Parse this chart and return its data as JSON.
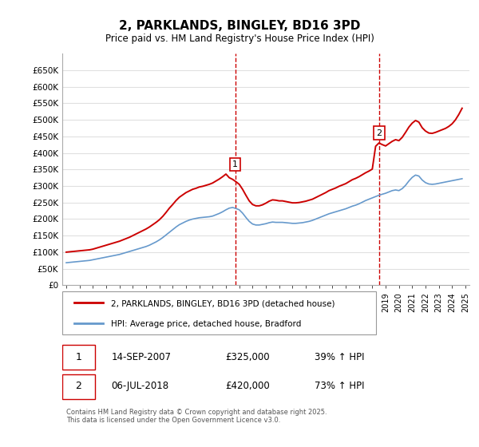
{
  "title": "2, PARKLANDS, BINGLEY, BD16 3PD",
  "subtitle": "Price paid vs. HM Land Registry's House Price Index (HPI)",
  "ylabel": "",
  "bg_color": "#ffffff",
  "grid_color": "#e0e0e0",
  "red_color": "#cc0000",
  "blue_color": "#6699cc",
  "marker1_date_idx": 12.75,
  "marker2_date_idx": 23.5,
  "marker1_label": "1",
  "marker2_label": "2",
  "legend_label_red": "2, PARKLANDS, BINGLEY, BD16 3PD (detached house)",
  "legend_label_blue": "HPI: Average price, detached house, Bradford",
  "table_rows": [
    [
      "1",
      "14-SEP-2007",
      "£325,000",
      "39% ↑ HPI"
    ],
    [
      "2",
      "06-JUL-2018",
      "£420,000",
      "73% ↑ HPI"
    ]
  ],
  "footnote": "Contains HM Land Registry data © Crown copyright and database right 2025.\nThis data is licensed under the Open Government Licence v3.0.",
  "ylim": [
    0,
    700000
  ],
  "yticks": [
    0,
    50000,
    100000,
    150000,
    200000,
    250000,
    300000,
    350000,
    400000,
    450000,
    500000,
    550000,
    600000,
    650000
  ],
  "ytick_labels": [
    "£0",
    "£50K",
    "£100K",
    "£150K",
    "£200K",
    "£250K",
    "£300K",
    "£350K",
    "£400K",
    "£450K",
    "£500K",
    "£550K",
    "£600K",
    "£650K"
  ],
  "xtick_years": [
    1995,
    1996,
    1997,
    1998,
    1999,
    2000,
    2001,
    2002,
    2003,
    2004,
    2005,
    2006,
    2007,
    2008,
    2009,
    2010,
    2011,
    2012,
    2013,
    2014,
    2015,
    2016,
    2017,
    2018,
    2019,
    2020,
    2021,
    2022,
    2023,
    2024,
    2025
  ],
  "hpi_x": [
    1995.0,
    1995.25,
    1995.5,
    1995.75,
    1996.0,
    1996.25,
    1996.5,
    1996.75,
    1997.0,
    1997.25,
    1997.5,
    1997.75,
    1998.0,
    1998.25,
    1998.5,
    1998.75,
    1999.0,
    1999.25,
    1999.5,
    1999.75,
    2000.0,
    2000.25,
    2000.5,
    2000.75,
    2001.0,
    2001.25,
    2001.5,
    2001.75,
    2002.0,
    2002.25,
    2002.5,
    2002.75,
    2003.0,
    2003.25,
    2003.5,
    2003.75,
    2004.0,
    2004.25,
    2004.5,
    2004.75,
    2005.0,
    2005.25,
    2005.5,
    2005.75,
    2006.0,
    2006.25,
    2006.5,
    2006.75,
    2007.0,
    2007.25,
    2007.5,
    2007.75,
    2008.0,
    2008.25,
    2008.5,
    2008.75,
    2009.0,
    2009.25,
    2009.5,
    2009.75,
    2010.0,
    2010.25,
    2010.5,
    2010.75,
    2011.0,
    2011.25,
    2011.5,
    2011.75,
    2012.0,
    2012.25,
    2012.5,
    2012.75,
    2013.0,
    2013.25,
    2013.5,
    2013.75,
    2014.0,
    2014.25,
    2014.5,
    2014.75,
    2015.0,
    2015.25,
    2015.5,
    2015.75,
    2016.0,
    2016.25,
    2016.5,
    2016.75,
    2017.0,
    2017.25,
    2017.5,
    2017.75,
    2018.0,
    2018.25,
    2018.5,
    2018.75,
    2019.0,
    2019.25,
    2019.5,
    2019.75,
    2020.0,
    2020.25,
    2020.5,
    2020.75,
    2021.0,
    2021.25,
    2021.5,
    2021.75,
    2022.0,
    2022.25,
    2022.5,
    2022.75,
    2023.0,
    2023.25,
    2023.5,
    2023.75,
    2024.0,
    2024.25,
    2024.5,
    2024.75
  ],
  "hpi_y": [
    68000,
    69000,
    70000,
    71000,
    72000,
    73000,
    74000,
    75000,
    77000,
    79000,
    81000,
    83000,
    85000,
    87000,
    89000,
    91000,
    93000,
    96000,
    99000,
    102000,
    105000,
    108000,
    111000,
    114000,
    117000,
    121000,
    126000,
    131000,
    137000,
    144000,
    152000,
    160000,
    168000,
    176000,
    183000,
    188000,
    193000,
    197000,
    200000,
    202000,
    204000,
    205000,
    206000,
    207000,
    209000,
    213000,
    217000,
    222000,
    228000,
    233000,
    235000,
    232000,
    228000,
    218000,
    205000,
    193000,
    185000,
    182000,
    182000,
    184000,
    186000,
    189000,
    191000,
    190000,
    190000,
    190000,
    189000,
    188000,
    187000,
    187000,
    188000,
    189000,
    191000,
    193000,
    196000,
    200000,
    204000,
    208000,
    212000,
    216000,
    219000,
    222000,
    225000,
    228000,
    231000,
    235000,
    239000,
    242000,
    246000,
    251000,
    256000,
    260000,
    264000,
    268000,
    272000,
    275000,
    278000,
    282000,
    286000,
    288000,
    286000,
    292000,
    302000,
    315000,
    326000,
    333000,
    330000,
    318000,
    310000,
    306000,
    305000,
    306000,
    308000,
    310000,
    312000,
    314000,
    316000,
    318000,
    320000,
    322000
  ],
  "red_x": [
    1995.0,
    1995.25,
    1995.5,
    1995.75,
    1996.0,
    1996.25,
    1996.5,
    1996.75,
    1997.0,
    1997.25,
    1997.5,
    1997.75,
    1998.0,
    1998.25,
    1998.5,
    1998.75,
    1999.0,
    1999.25,
    1999.5,
    1999.75,
    2000.0,
    2000.25,
    2000.5,
    2000.75,
    2001.0,
    2001.25,
    2001.5,
    2001.75,
    2002.0,
    2002.25,
    2002.5,
    2002.75,
    2003.0,
    2003.25,
    2003.5,
    2003.75,
    2004.0,
    2004.25,
    2004.5,
    2004.75,
    2005.0,
    2005.25,
    2005.5,
    2005.75,
    2006.0,
    2006.25,
    2006.5,
    2006.75,
    2007.0,
    2007.25,
    2007.5,
    2007.75,
    2008.0,
    2008.25,
    2008.5,
    2008.75,
    2009.0,
    2009.25,
    2009.5,
    2009.75,
    2010.0,
    2010.25,
    2010.5,
    2010.75,
    2011.0,
    2011.25,
    2011.5,
    2011.75,
    2012.0,
    2012.25,
    2012.5,
    2012.75,
    2013.0,
    2013.25,
    2013.5,
    2013.75,
    2014.0,
    2014.25,
    2014.5,
    2014.75,
    2015.0,
    2015.25,
    2015.5,
    2015.75,
    2016.0,
    2016.25,
    2016.5,
    2016.75,
    2017.0,
    2017.25,
    2017.5,
    2017.75,
    2018.0,
    2018.25,
    2018.5,
    2018.75,
    2019.0,
    2019.25,
    2019.5,
    2019.75,
    2020.0,
    2020.25,
    2020.5,
    2020.75,
    2021.0,
    2021.25,
    2021.5,
    2021.75,
    2022.0,
    2022.25,
    2022.5,
    2022.75,
    2023.0,
    2023.25,
    2023.5,
    2023.75,
    2024.0,
    2024.25,
    2024.5,
    2024.75
  ],
  "red_y": [
    100000,
    101000,
    102000,
    103000,
    104000,
    105000,
    106000,
    107000,
    109000,
    112000,
    115000,
    118000,
    121000,
    124000,
    127000,
    130000,
    133000,
    137000,
    141000,
    145000,
    150000,
    155000,
    160000,
    165000,
    170000,
    176000,
    183000,
    190000,
    198000,
    208000,
    220000,
    233000,
    244000,
    256000,
    266000,
    273000,
    280000,
    285000,
    290000,
    293000,
    297000,
    299000,
    302000,
    305000,
    309000,
    315000,
    321000,
    328000,
    336000,
    325000,
    320000,
    313000,
    305000,
    290000,
    272000,
    255000,
    244000,
    240000,
    240000,
    243000,
    248000,
    254000,
    258000,
    257000,
    255000,
    255000,
    253000,
    251000,
    249000,
    249000,
    250000,
    252000,
    254000,
    257000,
    260000,
    265000,
    270000,
    275000,
    280000,
    286000,
    290000,
    294000,
    299000,
    303000,
    307000,
    313000,
    319000,
    323000,
    328000,
    334000,
    340000,
    345000,
    351000,
    420000,
    430000,
    425000,
    421000,
    428000,
    435000,
    440000,
    437000,
    447000,
    462000,
    478000,
    490000,
    498000,
    493000,
    476000,
    466000,
    460000,
    459000,
    462000,
    466000,
    470000,
    474000,
    480000,
    488000,
    500000,
    516000,
    535000
  ],
  "marker1_x": 2007.7,
  "marker1_y": 325000,
  "marker2_x": 2018.5,
  "marker2_y": 420000,
  "vline1_x": 2007.7,
  "vline2_x": 2018.5
}
